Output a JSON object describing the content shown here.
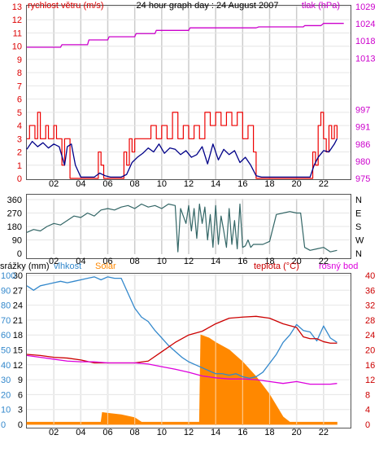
{
  "colors": {
    "wind_axis": "#dd0000",
    "pressure_axis": "#cc00cc",
    "wind_gust": "#ee0000",
    "wind_avg": "#000088",
    "pressure": "#cc00cc",
    "direction": "#336666",
    "rain_axis": "#000000",
    "humidity": "#3388cc",
    "solar": "#ff8800",
    "temperature": "#cc0000",
    "dewpoint": "#dd00dd",
    "grid": "#cccccc",
    "frame": "#555555"
  },
  "chart_data": [
    {
      "type": "line",
      "title": "24 hour graph day : 24 August 2007",
      "left_axis_label": "rychlost větru (m/s)",
      "right_axis_label": "tlak (hPa)",
      "left_ticks": [
        "0",
        "1",
        "2",
        "3",
        "4",
        "5",
        "6",
        "7",
        "8",
        "9",
        "10",
        "11",
        "12",
        "13"
      ],
      "right_ticks": [
        "975",
        "980",
        "986",
        "991",
        "997",
        "",
        "",
        "1013",
        "1018",
        "1024",
        "1029"
      ],
      "x_ticks": [
        "02",
        "04",
        "06",
        "08",
        "10",
        "12",
        "14",
        "16",
        "18",
        "20",
        "22",
        ""
      ],
      "ylim": [
        0,
        13
      ],
      "series": [
        {
          "name": "rychlost větru",
          "key": "gust",
          "x": [
            0,
            0.2,
            0.4,
            0.6,
            0.8,
            1.0,
            1.2,
            1.4,
            1.6,
            1.8,
            2.0,
            2.2,
            2.4,
            2.6,
            2.8,
            3.0,
            3.2,
            3.6,
            4.0,
            4.5,
            5.0,
            5.3,
            5.5,
            5.7,
            6.0,
            6.5,
            7.0,
            7.2,
            7.4,
            7.6,
            7.8,
            8.0,
            8.4,
            8.8,
            9.2,
            9.6,
            10.0,
            10.4,
            10.8,
            11.2,
            11.6,
            12.0,
            12.4,
            12.8,
            13.2,
            13.6,
            14.0,
            14.4,
            14.8,
            15.2,
            15.6,
            16.0,
            16.4,
            16.8,
            17.0,
            17.4,
            17.8,
            18.2,
            18.6,
            19.0,
            19.4,
            19.8,
            20.2,
            20.6,
            21.0,
            21.2,
            21.4,
            21.6,
            21.8,
            22.0,
            22.2,
            22.4,
            22.6,
            22.8,
            23.0
          ],
          "y": [
            3,
            4,
            4,
            3,
            5,
            3,
            3,
            4,
            3,
            3,
            4,
            3,
            3,
            1,
            3,
            3,
            0,
            0,
            0,
            0,
            0,
            2,
            1,
            0,
            0,
            0,
            0,
            2,
            1,
            3,
            2,
            3,
            3,
            3,
            4,
            3,
            4,
            3,
            5,
            3,
            4,
            3,
            4,
            3,
            5,
            4,
            5,
            4,
            5,
            4,
            5,
            3,
            4,
            2,
            0,
            0,
            0,
            0,
            0,
            0,
            0,
            0,
            0,
            0,
            0,
            2,
            1,
            4,
            5,
            3,
            2,
            4,
            3,
            4,
            3
          ]
        },
        {
          "name": "",
          "key": "avg",
          "x": [
            0,
            0.4,
            0.8,
            1.2,
            1.6,
            2.0,
            2.4,
            2.8,
            3.0,
            3.3,
            3.6,
            4.0,
            5.0,
            5.4,
            5.8,
            6.2,
            6.6,
            7.0,
            7.4,
            7.8,
            8.2,
            8.6,
            9.0,
            9.4,
            9.8,
            10.2,
            10.6,
            11.0,
            11.4,
            11.8,
            12.2,
            12.6,
            13.0,
            13.4,
            13.8,
            14.2,
            14.6,
            15.0,
            15.4,
            15.8,
            16.2,
            16.6,
            17.0,
            17.4,
            18.0,
            19.0,
            20.0,
            21.0,
            21.3,
            21.6,
            22.0,
            22.4,
            22.8,
            23.0
          ],
          "y": [
            2.2,
            2.8,
            2.4,
            2.7,
            2.3,
            2.6,
            2.4,
            1.0,
            2.4,
            2.6,
            1.0,
            0.1,
            0.1,
            0.4,
            0.2,
            0.1,
            0.1,
            0.1,
            0.3,
            1.2,
            1.6,
            1.9,
            2.3,
            2.0,
            2.6,
            1.9,
            2.3,
            2.2,
            1.8,
            2.1,
            1.6,
            1.8,
            2.4,
            1.1,
            2.6,
            1.4,
            2.2,
            1.8,
            2.1,
            1.2,
            1.6,
            1.0,
            0.2,
            0.1,
            0.1,
            0.1,
            0.1,
            0.1,
            1.0,
            1.6,
            2.1,
            2.0,
            2.6,
            3.0
          ]
        },
        {
          "name": "tlak",
          "key": "pressure",
          "units": "hPa",
          "x": [
            0,
            2.5,
            2.6,
            4.5,
            4.6,
            6,
            6.1,
            8,
            8.1,
            9.5,
            9.6,
            12,
            12.1,
            17,
            17.2,
            20.5,
            20.6,
            21.8,
            22,
            23.5
          ],
          "y": [
            1016.2,
            1016.2,
            1017.0,
            1017.0,
            1018.5,
            1018.5,
            1019.5,
            1019.5,
            1020.5,
            1020.5,
            1021.5,
            1021.5,
            1022.3,
            1022.3,
            1022.6,
            1022.6,
            1023.0,
            1023.0,
            1023.7,
            1023.7
          ]
        }
      ]
    },
    {
      "type": "line",
      "title": "",
      "left_ticks": [
        "0",
        "90",
        "180",
        "270",
        "360"
      ],
      "right_ticks": [
        "N",
        "W",
        "S",
        "E",
        "N"
      ],
      "x_ticks": [
        "02",
        "04",
        "06",
        "08",
        "10",
        "12",
        "14",
        "16",
        "18",
        "20",
        "22",
        ""
      ],
      "ylim": [
        0,
        360
      ],
      "series": [
        {
          "name": "",
          "key": "direction",
          "x": [
            0,
            0.5,
            1,
            1.5,
            2,
            2.5,
            3,
            3.5,
            4,
            4.5,
            5,
            5.5,
            6,
            6.5,
            7,
            7.5,
            8,
            8.5,
            9,
            9.5,
            10,
            10.5,
            11,
            11.2,
            11.4,
            11.6,
            11.8,
            12,
            12.2,
            12.4,
            12.6,
            12.8,
            13,
            13.2,
            13.4,
            13.6,
            13.8,
            14,
            14.2,
            14.4,
            14.6,
            14.8,
            15,
            15.2,
            15.4,
            15.6,
            15.8,
            16,
            16.2,
            16.4,
            16.6,
            16.8,
            17,
            17.5,
            18,
            18.5,
            19,
            19.5,
            20,
            20.3,
            20.6,
            21,
            21.5,
            22,
            22.5,
            23
          ],
          "y": [
            140,
            160,
            150,
            180,
            200,
            190,
            220,
            250,
            240,
            270,
            250,
            290,
            300,
            290,
            310,
            320,
            300,
            330,
            310,
            320,
            300,
            330,
            320,
            10,
            300,
            250,
            200,
            320,
            150,
            300,
            100,
            330,
            200,
            310,
            90,
            260,
            40,
            320,
            60,
            250,
            150,
            40,
            300,
            60,
            220,
            30,
            330,
            40,
            50,
            90,
            40,
            60,
            60,
            60,
            80,
            260,
            270,
            280,
            270,
            270,
            40,
            20,
            30,
            40,
            10,
            20
          ]
        }
      ]
    },
    {
      "type": "line",
      "title": "",
      "labels": [
        "srážky (mm)",
        "vlhkost",
        "Solar",
        "teplota (°C)",
        "rosný bod"
      ],
      "rain_ticks": [
        "0",
        "3",
        "6",
        "9",
        "12",
        "15",
        "18",
        "21",
        "24",
        "27",
        "30"
      ],
      "humidity_ticks": [
        "0",
        "10",
        "20",
        "30",
        "40",
        "50",
        "60",
        "70",
        "80",
        "90",
        "100"
      ],
      "temp_ticks": [
        "0",
        "4",
        "8",
        "12",
        "16",
        "20",
        "24",
        "28",
        "32",
        "36",
        "40"
      ],
      "x_ticks": [
        "02",
        "04",
        "06",
        "08",
        "10",
        "12",
        "14",
        "16",
        "18",
        "20",
        "22",
        ""
      ],
      "series": [
        {
          "name": "vlhkost",
          "key": "humidity",
          "units": "%",
          "x": [
            0,
            0.5,
            1,
            1.5,
            2,
            2.5,
            3,
            3.5,
            4,
            4.5,
            5,
            5.5,
            6,
            6.5,
            7,
            7.5,
            8,
            8.5,
            9,
            9.5,
            10,
            10.5,
            11,
            11.5,
            12,
            12.5,
            13,
            13.5,
            14,
            14.5,
            15,
            15.5,
            16,
            16.5,
            17,
            17.5,
            18,
            18.5,
            19,
            19.5,
            20,
            20.5,
            21,
            21.5,
            22,
            22.5,
            23
          ],
          "y": [
            93,
            90,
            93,
            94,
            95,
            96,
            95,
            96,
            97,
            98,
            99,
            97,
            99,
            98,
            98,
            88,
            78,
            72,
            69,
            63,
            58,
            53,
            49,
            45,
            42,
            40,
            38,
            36,
            34,
            34,
            33,
            34,
            32,
            31,
            32,
            35,
            41,
            47,
            55,
            60,
            67,
            63,
            62,
            56,
            66,
            58,
            55
          ]
        },
        {
          "name": "Solar",
          "key": "solar",
          "x": [
            0,
            5.5,
            5.6,
            6,
            7,
            8,
            8.5,
            12.8,
            12.9,
            13.5,
            14,
            15,
            16,
            17,
            18,
            19,
            19.5,
            20,
            23
          ],
          "y": [
            1.5,
            1.5,
            8,
            7.5,
            6.5,
            4.5,
            1.5,
            1.5,
            60,
            58,
            55,
            50,
            42,
            32,
            20,
            5,
            1.5,
            1.5,
            1.5
          ]
        },
        {
          "name": "teplota",
          "key": "temperature",
          "units": "°C",
          "x": [
            0,
            1,
            2,
            3,
            4,
            5,
            6,
            7,
            8,
            9,
            10,
            11,
            12,
            13,
            14,
            15,
            16,
            17,
            18,
            19,
            20,
            20.5,
            21,
            21.5,
            22,
            22.5,
            23
          ],
          "y": [
            18.8,
            18.5,
            18.0,
            17.8,
            17.3,
            16.5,
            16.5,
            16.5,
            16.5,
            17.0,
            19.5,
            22.0,
            24.0,
            25.0,
            27.0,
            28.5,
            28.8,
            29.0,
            28.5,
            27.0,
            26.0,
            23.5,
            23.0,
            23.0,
            22.2,
            21.8,
            21.8
          ]
        },
        {
          "name": "rosný bod",
          "key": "dewpoint",
          "units": "°C",
          "x": [
            0,
            1,
            2,
            3,
            4,
            5,
            6,
            7,
            8,
            9,
            10,
            11,
            12,
            13,
            14,
            15,
            16,
            17,
            18,
            19,
            20,
            21,
            22,
            22.5,
            23
          ],
          "y": [
            18.5,
            18.0,
            17.5,
            17.0,
            16.8,
            16.8,
            16.5,
            16.5,
            16.5,
            16.2,
            15.5,
            14.8,
            14.0,
            13.0,
            12.5,
            12.2,
            12.2,
            12.0,
            11.5,
            11.0,
            11.5,
            10.8,
            10.8,
            10.8,
            11.0
          ]
        }
      ]
    }
  ]
}
